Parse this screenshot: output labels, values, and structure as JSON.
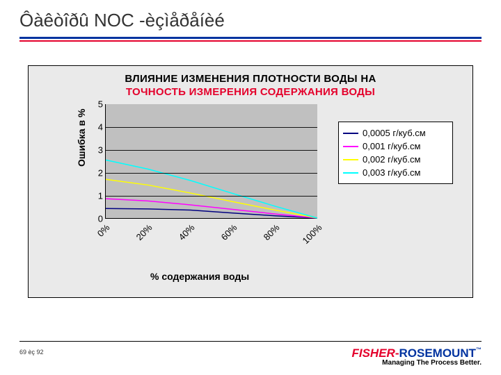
{
  "slide": {
    "title": "Ôàêòîðû NOC -èçìåðåíèé",
    "page_label": "69 èç 92"
  },
  "brand": {
    "fisher": "FISHER",
    "dash": "-",
    "rosemount": "ROSEMOUNT",
    "tm": "™",
    "tagline": "Managing The Process Better.",
    "fisher_color": "#e4002b",
    "rosemount_color": "#0033a0"
  },
  "chart": {
    "type": "line",
    "title_line1": "ВЛИЯНИЕ ИЗМЕНЕНИЯ ПЛОТНОСТИ ВОДЫ НА",
    "title_line2": "ТОЧНОСТЬ ИЗМЕРЕНИЯ СОДЕРЖАНИЯ ВОДЫ",
    "title2_color": "#e4002b",
    "ylabel": "Ошибка в %",
    "xlabel": "% содержания воды",
    "background_color": "#eaeaea",
    "plot_bg": "#c0c0c0",
    "grid_color": "#000000",
    "ylim": [
      0,
      5
    ],
    "ytick_step": 1,
    "xticks": [
      "0%",
      "20%",
      "40%",
      "60%",
      "80%",
      "100%"
    ],
    "x_values": [
      0,
      20,
      40,
      60,
      80,
      100
    ],
    "series": [
      {
        "label": "0,0005 г/куб.см",
        "color": "#000080",
        "y": [
          0.42,
          0.4,
          0.35,
          0.22,
          0.1,
          0.0
        ]
      },
      {
        "label": "0,001 г/куб.см",
        "color": "#ff00ff",
        "y": [
          0.85,
          0.75,
          0.58,
          0.38,
          0.18,
          0.0
        ]
      },
      {
        "label": "0,002 г/куб.см",
        "color": "#ffff00",
        "y": [
          1.7,
          1.45,
          1.1,
          0.72,
          0.35,
          0.0
        ]
      },
      {
        "label": "0,003 г/куб.см",
        "color": "#00ffff",
        "y": [
          2.55,
          2.15,
          1.65,
          1.08,
          0.52,
          0.0
        ]
      }
    ],
    "line_width": 1.5,
    "label_fontsize": 14,
    "tick_fontsize": 13,
    "legend_bg": "#ffffff"
  },
  "colors": {
    "rule_blue": "#0033a0",
    "rule_red": "#e4002b"
  }
}
